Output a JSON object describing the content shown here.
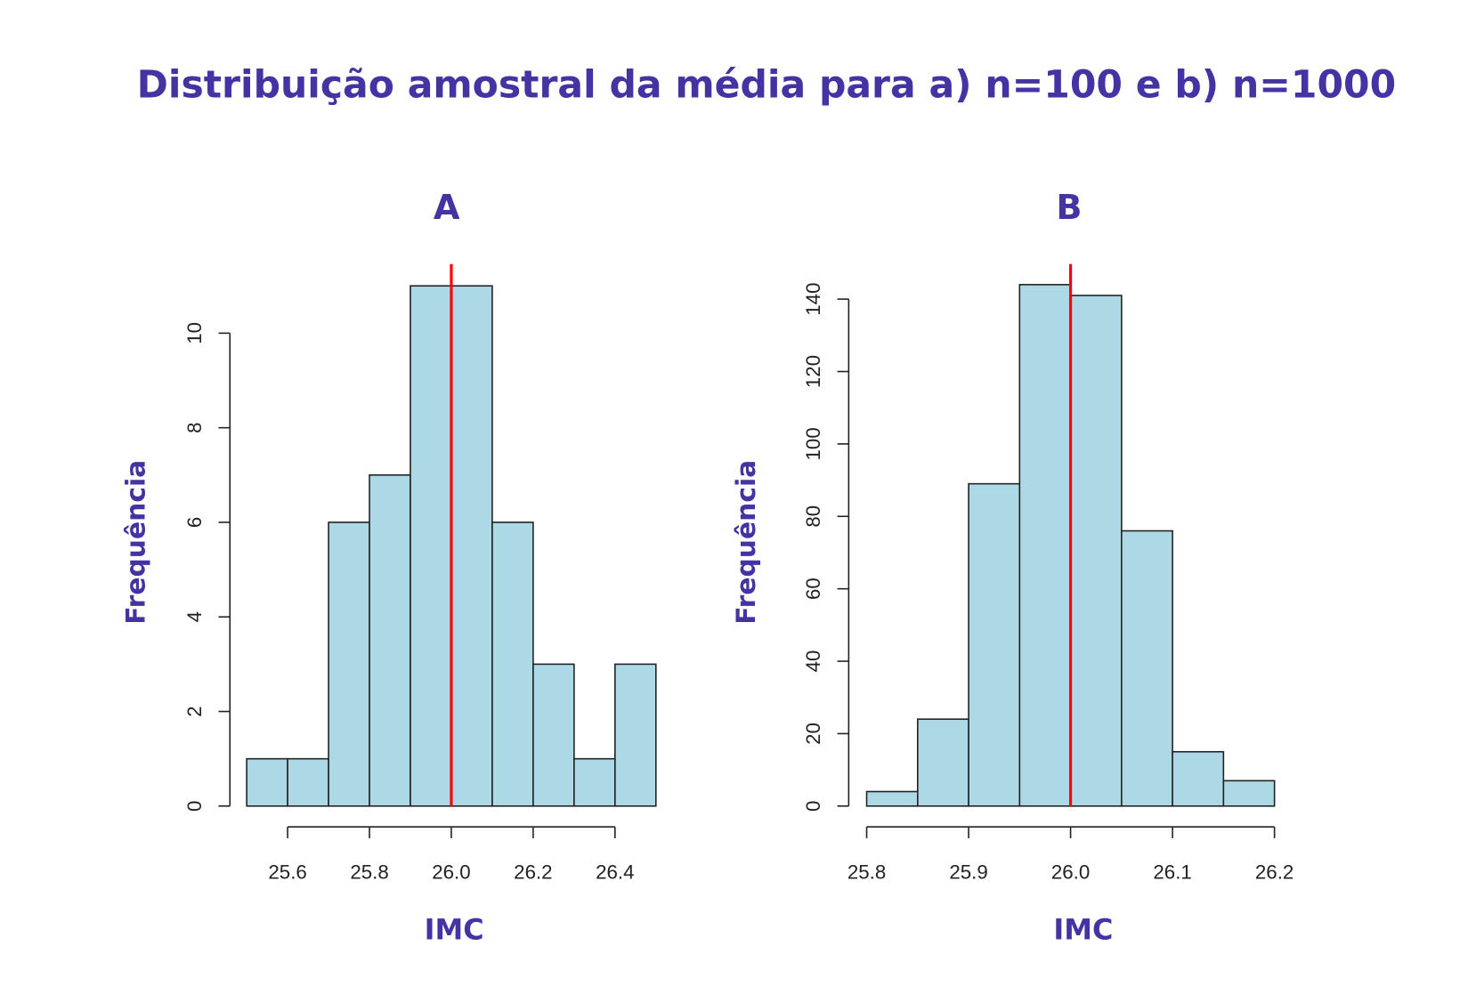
{
  "title": "Distribuição amostral da média para a) n=100 e b) n=1000",
  "colors": {
    "title": "#4433a3",
    "bar_fill": "#add8e6",
    "mean_line": "#ff0000"
  },
  "chart_data": [
    {
      "type": "bar",
      "panel": "A",
      "title": "A",
      "xlabel": "IMC",
      "ylabel": "Frequência",
      "bin_edges": [
        25.5,
        25.6,
        25.7,
        25.8,
        25.9,
        26.0,
        26.1,
        26.2,
        26.3,
        26.4,
        26.5
      ],
      "values": [
        1,
        1,
        6,
        7,
        11,
        11,
        6,
        3,
        1,
        3
      ],
      "xticks": [
        "25.6",
        "25.8",
        "26.0",
        "26.2",
        "26.4"
      ],
      "yticks": [
        "0",
        "2",
        "4",
        "6",
        "8",
        "10"
      ],
      "xlim": [
        25.6,
        26.4
      ],
      "ylim": [
        0,
        10
      ],
      "mean_line": 26.0
    },
    {
      "type": "bar",
      "panel": "B",
      "title": "B",
      "xlabel": "IMC",
      "ylabel": "Frequência",
      "bin_edges": [
        25.8,
        25.85,
        25.9,
        25.95,
        26.0,
        26.05,
        26.1,
        26.15,
        26.2
      ],
      "values": [
        4,
        24,
        89,
        144,
        141,
        76,
        15,
        7
      ],
      "xticks": [
        "25.8",
        "25.9",
        "26.0",
        "26.1",
        "26.2"
      ],
      "yticks": [
        "0",
        "20",
        "40",
        "60",
        "80",
        "100",
        "120",
        "140"
      ],
      "xlim": [
        25.8,
        26.2
      ],
      "ylim": [
        0,
        140
      ],
      "mean_line": 26.0
    }
  ]
}
